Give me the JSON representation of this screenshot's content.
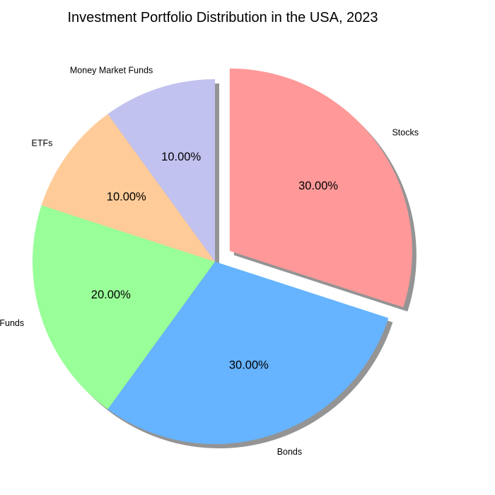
{
  "chart_data": {
    "type": "pie",
    "title": "Investment Portfolio Distribution in the USA, 2023",
    "slices": [
      {
        "label": "Stocks",
        "value": 30,
        "pct_label": "30.00%",
        "color": "#ff9999",
        "exploded": true
      },
      {
        "label": "Bonds",
        "value": 30,
        "pct_label": "30.00%",
        "color": "#66b3ff",
        "exploded": false
      },
      {
        "label": "Mutual Funds",
        "value": 20,
        "pct_label": "20.00%",
        "color": "#99ff99",
        "exploded": false
      },
      {
        "label": "ETFs",
        "value": 10,
        "pct_label": "10.00%",
        "color": "#ffcc99",
        "exploded": false
      },
      {
        "label": "Money Market Funds",
        "value": 10,
        "pct_label": "10.00%",
        "color": "#c2c2f0",
        "exploded": false
      }
    ],
    "shadow": true,
    "legend": false
  }
}
